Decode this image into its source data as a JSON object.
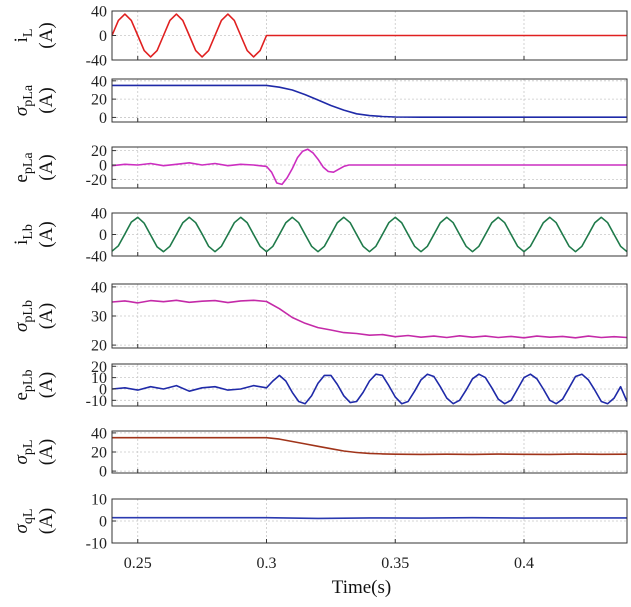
{
  "chart_data": {
    "type": "line",
    "x_range": [
      0.24,
      0.44
    ],
    "x_ticks": [
      0.25,
      0.3,
      0.35,
      0.4
    ],
    "x_tick_labels": [
      "0.25",
      "0.3",
      "0.35",
      "0.4"
    ],
    "xlabel": "Time(s)",
    "grid": true,
    "panels": [
      {
        "ylabel_main": "i",
        "ylabel_sub": "L",
        "ylabel_greek": false,
        "ylabel_unit": "(A)",
        "ylim": [
          -40,
          40
        ],
        "yticks": [
          -40,
          0,
          40
        ],
        "ytick_labels": [
          "-40",
          "0",
          "40"
        ],
        "color": "#e02020",
        "series": {
          "x": [
            0.24,
            0.2425,
            0.245,
            0.2475,
            0.25,
            0.2525,
            0.255,
            0.2575,
            0.26,
            0.2625,
            0.265,
            0.2675,
            0.27,
            0.2725,
            0.275,
            0.2775,
            0.28,
            0.2825,
            0.285,
            0.2875,
            0.29,
            0.2925,
            0.295,
            0.2975,
            0.3,
            0.31,
            0.35,
            0.4,
            0.44
          ],
          "y": [
            0,
            24.7,
            35,
            24.7,
            0,
            -24.7,
            -35,
            -24.7,
            0,
            24.7,
            35,
            24.7,
            0,
            -24.7,
            -35,
            -24.7,
            0,
            24.7,
            35,
            24.7,
            0,
            -24.7,
            -35,
            -24.7,
            0,
            0,
            0,
            0,
            0
          ]
        }
      },
      {
        "ylabel_main": "σ",
        "ylabel_sub": "pLa",
        "ylabel_greek": true,
        "ylabel_unit": "(A)",
        "ylim": [
          -5,
          42
        ],
        "yticks": [
          0,
          20,
          40
        ],
        "ytick_labels": [
          "0",
          "20",
          "40"
        ],
        "color": "#1f2aa8",
        "series": {
          "x": [
            0.24,
            0.26,
            0.28,
            0.3,
            0.305,
            0.31,
            0.315,
            0.32,
            0.325,
            0.33,
            0.335,
            0.34,
            0.345,
            0.35,
            0.36,
            0.38,
            0.4,
            0.42,
            0.44
          ],
          "y": [
            35,
            35,
            35,
            35,
            33,
            30,
            25,
            19,
            13,
            8,
            4,
            2,
            1,
            0.5,
            0.3,
            0.3,
            0.3,
            0.3,
            0.3
          ]
        }
      },
      {
        "ylabel_main": "e",
        "ylabel_sub": "pLa",
        "ylabel_greek": false,
        "ylabel_unit": "(A)",
        "ylim": [
          -32,
          25
        ],
        "yticks": [
          -20,
          0,
          20
        ],
        "ytick_labels": [
          "-20",
          "0",
          "20"
        ],
        "color": "#cc2ec0",
        "series": {
          "x": [
            0.24,
            0.245,
            0.25,
            0.255,
            0.26,
            0.265,
            0.27,
            0.275,
            0.28,
            0.285,
            0.29,
            0.295,
            0.3,
            0.302,
            0.304,
            0.306,
            0.308,
            0.31,
            0.312,
            0.314,
            0.316,
            0.318,
            0.32,
            0.322,
            0.324,
            0.326,
            0.328,
            0.33,
            0.332,
            0.34,
            0.36,
            0.4,
            0.44
          ],
          "y": [
            -1,
            1,
            0,
            2,
            -1,
            1,
            3,
            0,
            2,
            -1,
            1,
            0,
            -2,
            -10,
            -25,
            -27,
            -18,
            -5,
            10,
            19,
            22,
            17,
            8,
            -3,
            -9,
            -10,
            -6,
            -2,
            0,
            0,
            0,
            0,
            0
          ]
        }
      },
      {
        "ylabel_main": "i",
        "ylabel_sub": "Lb",
        "ylabel_greek": false,
        "ylabel_unit": "(A)",
        "ylim": [
          -40,
          40
        ],
        "yticks": [
          -40,
          0,
          40
        ],
        "ytick_labels": [
          "-40",
          "0",
          "40"
        ],
        "color": "#1f7a4a",
        "series": {
          "x": [
            0.24,
            0.2425,
            0.245,
            0.2475,
            0.25,
            0.2525,
            0.255,
            0.2575,
            0.26,
            0.2625,
            0.265,
            0.2675,
            0.27,
            0.2725,
            0.275,
            0.2775,
            0.28,
            0.2825,
            0.285,
            0.2875,
            0.29,
            0.2925,
            0.295,
            0.2975,
            0.3,
            0.3025,
            0.305,
            0.3075,
            0.31,
            0.3125,
            0.315,
            0.3175,
            0.32,
            0.3225,
            0.325,
            0.3275,
            0.33,
            0.3325,
            0.335,
            0.3375,
            0.34,
            0.3425,
            0.345,
            0.3475,
            0.35,
            0.3525,
            0.355,
            0.3575,
            0.36,
            0.3625,
            0.365,
            0.3675,
            0.37,
            0.3725,
            0.375,
            0.3775,
            0.38,
            0.3825,
            0.385,
            0.3875,
            0.39,
            0.3925,
            0.395,
            0.3975,
            0.4,
            0.4025,
            0.405,
            0.4075,
            0.41,
            0.4125,
            0.415,
            0.4175,
            0.42,
            0.4225,
            0.425,
            0.4275,
            0.43,
            0.4325,
            0.435,
            0.4375,
            0.44
          ],
          "y": [
            -31,
            -21,
            1,
            23,
            32,
            21,
            -1,
            -23,
            -32,
            -22,
            0,
            22,
            32,
            22,
            1,
            -22,
            -32,
            -22,
            0,
            22,
            32,
            22,
            0,
            -22,
            -32,
            -22,
            0,
            22,
            32,
            22,
            0,
            -22,
            -32,
            -22,
            0,
            22,
            32,
            22,
            0,
            -22,
            -32,
            -22,
            0,
            22,
            32,
            22,
            0,
            -22,
            -32,
            -22,
            0,
            22,
            32,
            22,
            0,
            -22,
            -32,
            -22,
            0,
            22,
            32,
            22,
            0,
            -22,
            -32,
            -22,
            0,
            22,
            32,
            22,
            0,
            -22,
            -32,
            -22,
            0,
            22,
            32,
            22,
            0,
            -22,
            -32
          ]
        }
      },
      {
        "ylabel_main": "σ",
        "ylabel_sub": "pLb",
        "ylabel_greek": true,
        "ylabel_unit": "(A)",
        "ylim": [
          19,
          41
        ],
        "yticks": [
          20,
          30,
          40
        ],
        "ytick_labels": [
          "20",
          "30",
          "40"
        ],
        "color": "#c42aa8",
        "series": {
          "x": [
            0.24,
            0.245,
            0.25,
            0.255,
            0.26,
            0.265,
            0.27,
            0.275,
            0.28,
            0.285,
            0.29,
            0.295,
            0.3,
            0.305,
            0.31,
            0.315,
            0.32,
            0.325,
            0.33,
            0.335,
            0.34,
            0.345,
            0.35,
            0.355,
            0.36,
            0.365,
            0.37,
            0.375,
            0.38,
            0.385,
            0.39,
            0.395,
            0.4,
            0.405,
            0.41,
            0.415,
            0.42,
            0.425,
            0.43,
            0.435,
            0.44
          ],
          "y": [
            34.8,
            35.2,
            34.5,
            35.3,
            34.9,
            35.4,
            34.7,
            35.1,
            35.3,
            34.6,
            35.2,
            35.4,
            35,
            32.5,
            29.5,
            27.5,
            26,
            25.2,
            24.3,
            24,
            23.4,
            23.6,
            22.9,
            23.3,
            22.7,
            23.1,
            22.6,
            23.2,
            22.7,
            23.1,
            22.6,
            23,
            22.5,
            23.1,
            22.7,
            23,
            22.5,
            23.1,
            22.6,
            22.9,
            22.6
          ]
        }
      },
      {
        "ylabel_main": "e",
        "ylabel_sub": "pLb",
        "ylabel_greek": false,
        "ylabel_unit": "(A)",
        "ylim": [
          -15,
          22
        ],
        "yticks": [
          -10,
          0,
          10,
          20
        ],
        "ytick_labels": [
          "-10",
          "0",
          "10",
          "20"
        ],
        "color": "#1f2aa8",
        "series": {
          "x": [
            0.24,
            0.245,
            0.25,
            0.255,
            0.26,
            0.265,
            0.27,
            0.275,
            0.28,
            0.285,
            0.29,
            0.295,
            0.3,
            0.3025,
            0.305,
            0.3075,
            0.31,
            0.3125,
            0.315,
            0.3175,
            0.32,
            0.3225,
            0.325,
            0.3275,
            0.33,
            0.3325,
            0.335,
            0.3375,
            0.34,
            0.3425,
            0.345,
            0.3475,
            0.35,
            0.3525,
            0.355,
            0.3575,
            0.36,
            0.3625,
            0.365,
            0.3675,
            0.37,
            0.3725,
            0.375,
            0.3775,
            0.38,
            0.3825,
            0.385,
            0.3875,
            0.39,
            0.3925,
            0.395,
            0.3975,
            0.4,
            0.4025,
            0.405,
            0.4075,
            0.41,
            0.4125,
            0.415,
            0.4175,
            0.42,
            0.4225,
            0.425,
            0.4275,
            0.43,
            0.4325,
            0.435,
            0.4375,
            0.44
          ],
          "y": [
            0,
            1,
            -1,
            2,
            0,
            3,
            -2,
            1,
            2,
            -1,
            0,
            3,
            1,
            7,
            12,
            7,
            -3,
            -11,
            -13,
            -6,
            5,
            12,
            12,
            4,
            -6,
            -12,
            -11,
            -3,
            7,
            13,
            12,
            3,
            -7,
            -13,
            -11,
            -2,
            8,
            13,
            11,
            2,
            -8,
            -13,
            -10,
            -1,
            9,
            13,
            10,
            1,
            -9,
            -13,
            -10,
            0,
            10,
            13,
            9,
            0,
            -10,
            -13,
            -9,
            1,
            11,
            13,
            8,
            -1,
            -11,
            -13,
            -8,
            2,
            -11
          ]
        }
      },
      {
        "ylabel_main": "σ",
        "ylabel_sub": "pL",
        "ylabel_greek": true,
        "ylabel_unit": "(A)",
        "ylim": [
          -2,
          42
        ],
        "yticks": [
          0,
          20,
          40
        ],
        "ytick_labels": [
          "0",
          "20",
          "40"
        ],
        "color": "#a0341a",
        "series": {
          "x": [
            0.24,
            0.26,
            0.28,
            0.3,
            0.305,
            0.31,
            0.315,
            0.32,
            0.325,
            0.33,
            0.335,
            0.34,
            0.345,
            0.35,
            0.36,
            0.37,
            0.38,
            0.39,
            0.4,
            0.41,
            0.42,
            0.43,
            0.44
          ],
          "y": [
            35,
            35,
            35,
            35,
            33.5,
            31,
            28.5,
            26,
            23.5,
            21,
            19.5,
            18.5,
            18,
            17.7,
            17.5,
            17.7,
            17.5,
            17.8,
            17.6,
            17.5,
            17.8,
            17.6,
            17.7
          ]
        }
      },
      {
        "ylabel_main": "σ",
        "ylabel_sub": "qL",
        "ylabel_greek": true,
        "ylabel_unit": "(A)",
        "ylim": [
          -10,
          10
        ],
        "yticks": [
          -10,
          0,
          10
        ],
        "ytick_labels": [
          "-10",
          "0",
          "10"
        ],
        "color": "#2a3ab0",
        "series": {
          "x": [
            0.24,
            0.26,
            0.28,
            0.3,
            0.32,
            0.34,
            0.36,
            0.38,
            0.4,
            0.42,
            0.44
          ],
          "y": [
            1.5,
            1.5,
            1.5,
            1.5,
            1.2,
            1.4,
            1.3,
            1.5,
            1.3,
            1.4,
            1.4
          ]
        }
      }
    ]
  }
}
